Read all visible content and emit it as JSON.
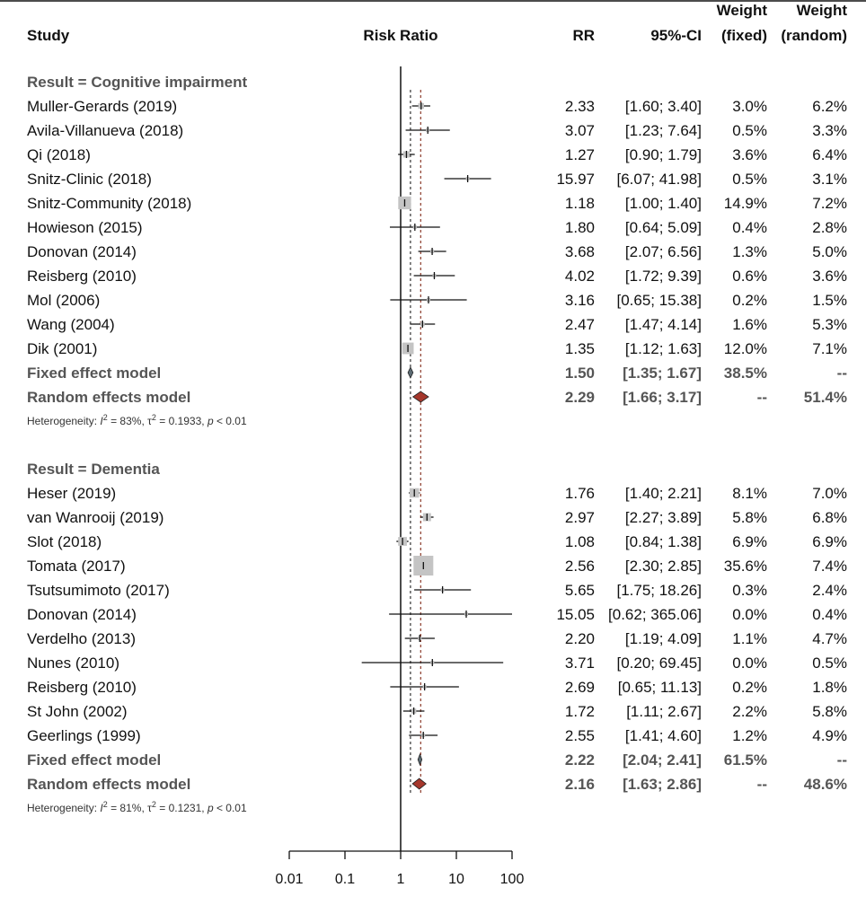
{
  "chart_data": {
    "type": "forest",
    "x_scale": "log",
    "xlim": [
      0.01,
      100
    ],
    "x_ticks": [
      "0.01",
      "0.1",
      "1",
      "10",
      "100"
    ],
    "null_value": 1,
    "headers": {
      "study": "Study",
      "axis": "Risk Ratio",
      "rr": "RR",
      "ci": "95%-CI",
      "wf_line1": "Weight",
      "wf_line2": "(fixed)",
      "wr_line1": "Weight",
      "wr_line2": "(random)"
    },
    "fixed_line_color": "#333333",
    "random_line_color": "#8B3A2A",
    "fixed_diamond_color": "#5C6B73",
    "random_diamond_color": "#A5372C",
    "groups": [
      {
        "title": "Result = Cognitive impairment",
        "studies": [
          {
            "name": "Muller-Gerards (2019)",
            "rr": 2.33,
            "lo": 1.6,
            "hi": 3.4,
            "rr_text": "2.33",
            "ci_text": "[1.60;  3.40]",
            "wf": "3.0%",
            "wr": "6.2%"
          },
          {
            "name": "Avila-Villanueva (2018)",
            "rr": 3.07,
            "lo": 1.23,
            "hi": 7.64,
            "rr_text": "3.07",
            "ci_text": "[1.23;  7.64]",
            "wf": "0.5%",
            "wr": "3.3%"
          },
          {
            "name": "Qi (2018)",
            "rr": 1.27,
            "lo": 0.9,
            "hi": 1.79,
            "rr_text": "1.27",
            "ci_text": "[0.90;  1.79]",
            "wf": "3.6%",
            "wr": "6.4%"
          },
          {
            "name": "Snitz-Clinic (2018)",
            "rr": 15.97,
            "lo": 6.07,
            "hi": 41.98,
            "rr_text": "15.97",
            "ci_text": "[6.07; 41.98]",
            "wf": "0.5%",
            "wr": "3.1%"
          },
          {
            "name": "Snitz-Community (2018)",
            "rr": 1.18,
            "lo": 1.0,
            "hi": 1.4,
            "rr_text": "1.18",
            "ci_text": "[1.00;  1.40]",
            "wf": "14.9%",
            "wr": "7.2%"
          },
          {
            "name": "Howieson (2015)",
            "rr": 1.8,
            "lo": 0.64,
            "hi": 5.09,
            "rr_text": "1.80",
            "ci_text": "[0.64;  5.09]",
            "wf": "0.4%",
            "wr": "2.8%"
          },
          {
            "name": "Donovan (2014)",
            "rr": 3.68,
            "lo": 2.07,
            "hi": 6.56,
            "rr_text": "3.68",
            "ci_text": "[2.07;  6.56]",
            "wf": "1.3%",
            "wr": "5.0%"
          },
          {
            "name": "Reisberg (2010)",
            "rr": 4.02,
            "lo": 1.72,
            "hi": 9.39,
            "rr_text": "4.02",
            "ci_text": "[1.72;  9.39]",
            "wf": "0.6%",
            "wr": "3.6%"
          },
          {
            "name": "Mol (2006)",
            "rr": 3.16,
            "lo": 0.65,
            "hi": 15.38,
            "rr_text": "3.16",
            "ci_text": "[0.65; 15.38]",
            "wf": "0.2%",
            "wr": "1.5%"
          },
          {
            "name": "Wang (2004)",
            "rr": 2.47,
            "lo": 1.47,
            "hi": 4.14,
            "rr_text": "2.47",
            "ci_text": "[1.47;  4.14]",
            "wf": "1.6%",
            "wr": "5.3%"
          },
          {
            "name": "Dik (2001)",
            "rr": 1.35,
            "lo": 1.12,
            "hi": 1.63,
            "rr_text": "1.35",
            "ci_text": "[1.12;  1.63]",
            "wf": "12.0%",
            "wr": "7.1%"
          }
        ],
        "fixed": {
          "label": "Fixed effect model",
          "rr": 1.5,
          "lo": 1.35,
          "hi": 1.67,
          "rr_text": "1.50",
          "ci_text": "[1.35;  1.67]",
          "wf": "38.5%",
          "wr": "--"
        },
        "random": {
          "label": "Random effects model",
          "rr": 2.29,
          "lo": 1.66,
          "hi": 3.17,
          "rr_text": "2.29",
          "ci_text": "[1.66;  3.17]",
          "wf": "--",
          "wr": "51.4%"
        },
        "heterogeneity": {
          "prefix": "Heterogeneity: ",
          "i2_symbol": "I",
          "i2": " = 83%, ",
          "tau2_symbol": "τ",
          "tau2": " = 0.1933, ",
          "p_symbol": "p",
          "p": " < 0.01"
        }
      },
      {
        "title": "Result = Dementia",
        "studies": [
          {
            "name": "Heser (2019)",
            "rr": 1.76,
            "lo": 1.4,
            "hi": 2.21,
            "rr_text": "1.76",
            "ci_text": "[1.40;  2.21]",
            "wf": "8.1%",
            "wr": "7.0%"
          },
          {
            "name": "van Wanrooij (2019)",
            "rr": 2.97,
            "lo": 2.27,
            "hi": 3.89,
            "rr_text": "2.97",
            "ci_text": "[2.27;  3.89]",
            "wf": "5.8%",
            "wr": "6.8%"
          },
          {
            "name": "Slot (2018)",
            "rr": 1.08,
            "lo": 0.84,
            "hi": 1.38,
            "rr_text": "1.08",
            "ci_text": "[0.84;  1.38]",
            "wf": "6.9%",
            "wr": "6.9%"
          },
          {
            "name": "Tomata (2017)",
            "rr": 2.56,
            "lo": 2.3,
            "hi": 2.85,
            "rr_text": "2.56",
            "ci_text": "[2.30;  2.85]",
            "wf": "35.6%",
            "wr": "7.4%"
          },
          {
            "name": "Tsutsumimoto (2017)",
            "rr": 5.65,
            "lo": 1.75,
            "hi": 18.26,
            "rr_text": "5.65",
            "ci_text": "[1.75; 18.26]",
            "wf": "0.3%",
            "wr": "2.4%"
          },
          {
            "name": "Donovan (2014)",
            "rr": 15.05,
            "lo": 0.62,
            "hi": 365.06,
            "rr_text": "15.05",
            "ci_text": "[0.62; 365.06]",
            "wf": "0.0%",
            "wr": "0.4%"
          },
          {
            "name": "Verdelho (2013)",
            "rr": 2.2,
            "lo": 1.19,
            "hi": 4.09,
            "rr_text": "2.20",
            "ci_text": "[1.19;  4.09]",
            "wf": "1.1%",
            "wr": "4.7%"
          },
          {
            "name": "Nunes (2010)",
            "rr": 3.71,
            "lo": 0.2,
            "hi": 69.45,
            "rr_text": "3.71",
            "ci_text": "[0.20; 69.45]",
            "wf": "0.0%",
            "wr": "0.5%"
          },
          {
            "name": "Reisberg (2010)",
            "rr": 2.69,
            "lo": 0.65,
            "hi": 11.13,
            "rr_text": "2.69",
            "ci_text": "[0.65; 11.13]",
            "wf": "0.2%",
            "wr": "1.8%"
          },
          {
            "name": "St John (2002)",
            "rr": 1.72,
            "lo": 1.11,
            "hi": 2.67,
            "rr_text": "1.72",
            "ci_text": "[1.11;  2.67]",
            "wf": "2.2%",
            "wr": "5.8%"
          },
          {
            "name": "Geerlings (1999)",
            "rr": 2.55,
            "lo": 1.41,
            "hi": 4.6,
            "rr_text": "2.55",
            "ci_text": "[1.41;  4.60]",
            "wf": "1.2%",
            "wr": "4.9%"
          }
        ],
        "fixed": {
          "label": "Fixed effect model",
          "rr": 2.22,
          "lo": 2.04,
          "hi": 2.41,
          "rr_text": "2.22",
          "ci_text": "[2.04;  2.41]",
          "wf": "61.5%",
          "wr": "--"
        },
        "random": {
          "label": "Random effects model",
          "rr": 2.16,
          "lo": 1.63,
          "hi": 2.86,
          "rr_text": "2.16",
          "ci_text": "[1.63;  2.86]",
          "wf": "--",
          "wr": "48.6%"
        },
        "heterogeneity": {
          "prefix": "Heterogeneity: ",
          "i2_symbol": "I",
          "i2": " = 81%, ",
          "tau2_symbol": "τ",
          "tau2": " = 0.1231, ",
          "p_symbol": "p",
          "p": " < 0.01"
        }
      }
    ],
    "overall_fixed_rr": 1.5,
    "overall_random_rr": 2.29
  }
}
